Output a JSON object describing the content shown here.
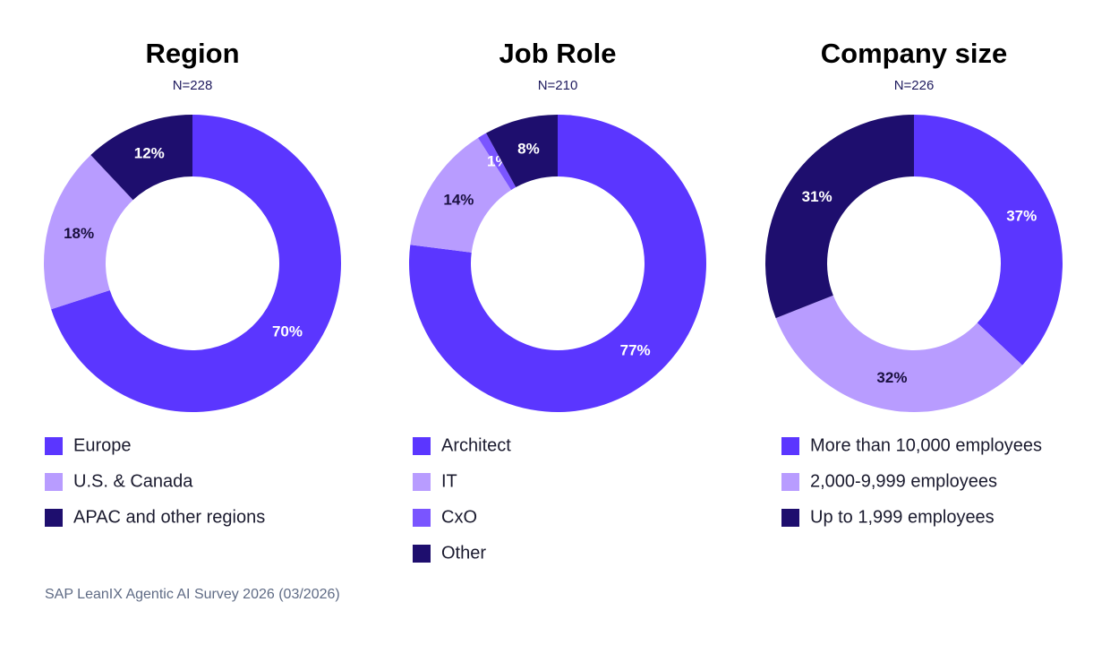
{
  "chart_data": [
    {
      "type": "pie",
      "title": "Region",
      "subtitle": "N=228",
      "categories": [
        "Europe",
        "U.S. & Canada",
        "APAC and other regions"
      ],
      "values": [
        70,
        18,
        12
      ],
      "value_labels": [
        "70%",
        "18%",
        "12%"
      ],
      "colors": [
        "#5b36ff",
        "#b89cff",
        "#1e0e6e"
      ]
    },
    {
      "type": "pie",
      "title": "Job Role",
      "subtitle": "N=210",
      "categories": [
        "Architect",
        "IT",
        "CxO",
        "Other"
      ],
      "values": [
        77,
        14,
        1,
        8
      ],
      "value_labels": [
        "77%",
        "14%",
        "1%",
        "8%"
      ],
      "colors": [
        "#5b36ff",
        "#b89cff",
        "#7a55ff",
        "#1e0e6e"
      ]
    },
    {
      "type": "pie",
      "title": "Company size",
      "subtitle": "N=226",
      "categories": [
        "More than 10,000 employees",
        "2,000-9,999 employees",
        "Up to 1,999 employees"
      ],
      "values": [
        37,
        32,
        31
      ],
      "value_labels": [
        "37%",
        "32%",
        "31%"
      ],
      "colors": [
        "#5b36ff",
        "#b89cff",
        "#1e0e6e"
      ]
    }
  ],
  "footnote": "SAP LeanIX Agentic AI Survey 2026 (03/2026)"
}
